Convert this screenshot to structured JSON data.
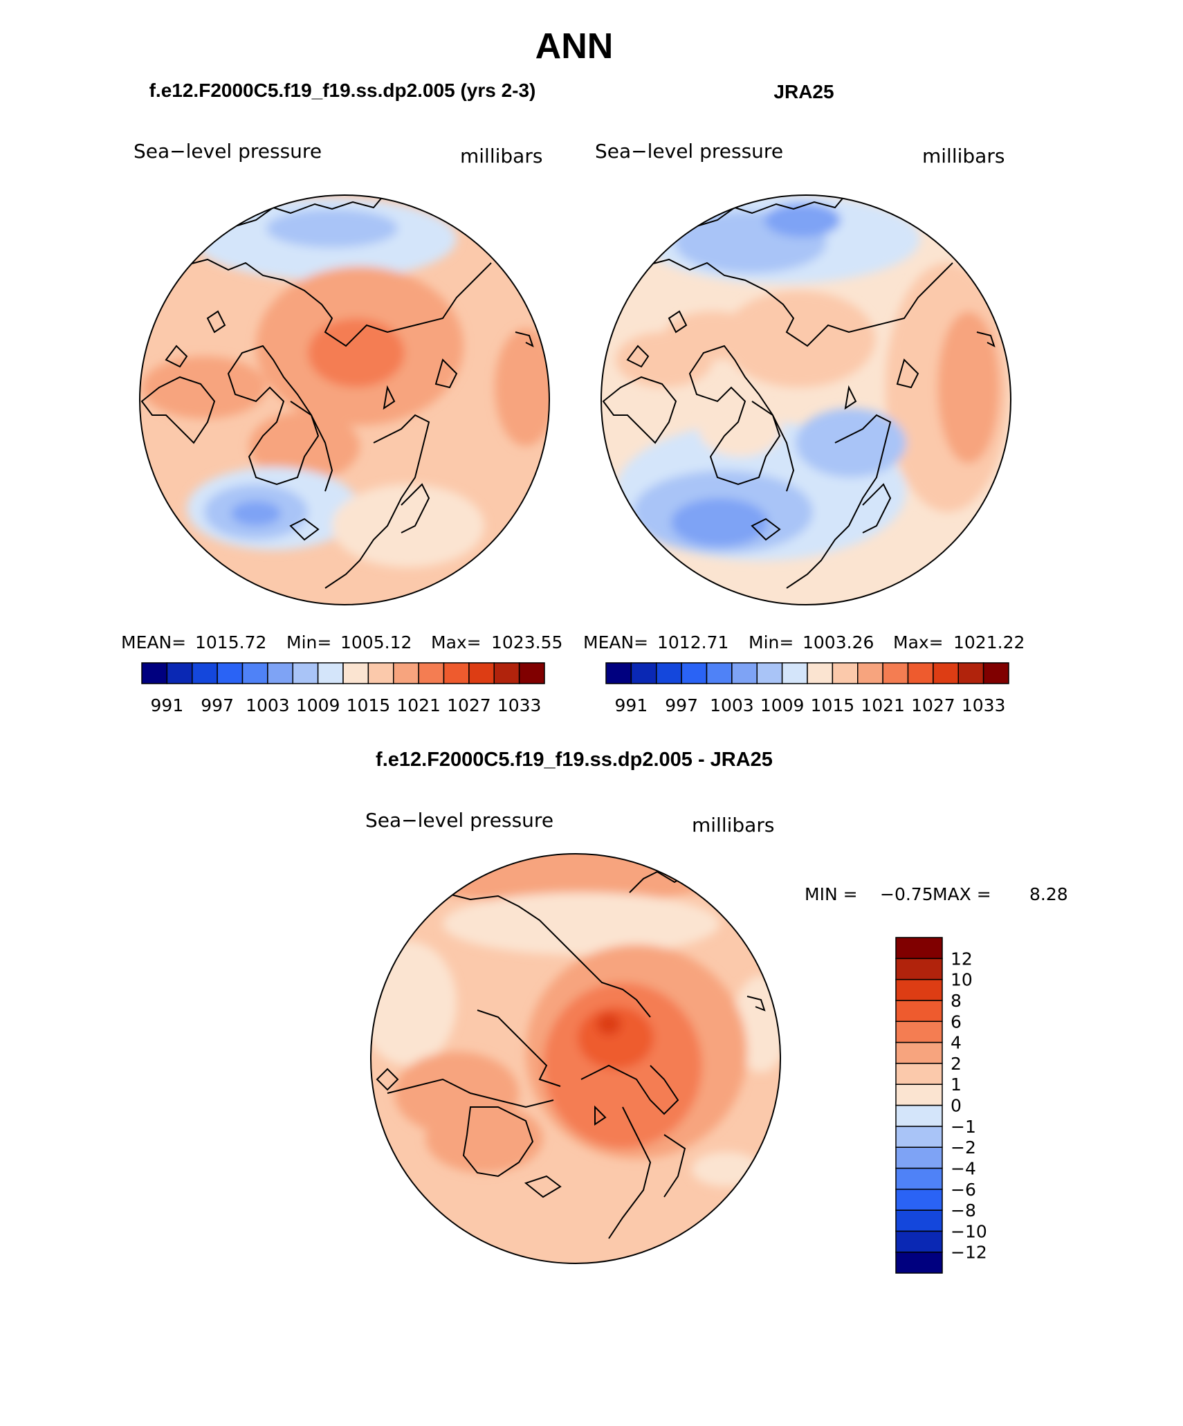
{
  "page": {
    "title": "ANN",
    "diff_title": "f.e12.F2000C5.f19_f19.ss.dp2.005 - JRA25"
  },
  "panels": [
    {
      "case_title": "f.e12.F2000C5.f19_f19.ss.dp2.005 (yrs 2-3)",
      "variable": "Sea−level pressure",
      "units": "millibars",
      "stats": {
        "mean_label": "MEAN=",
        "mean": "1015.72",
        "min_label": "Min=",
        "min": "1005.12",
        "max_label": "Max=",
        "max": "1023.55"
      }
    },
    {
      "case_title": "JRA25",
      "variable": "Sea−level pressure",
      "units": "millibars",
      "stats": {
        "mean_label": "MEAN=",
        "mean": "1012.71",
        "min_label": "Min=",
        "min": "1003.26",
        "max_label": "Max=",
        "max": "1021.22"
      }
    }
  ],
  "diff_panel": {
    "variable": "Sea−level pressure",
    "units": "millibars",
    "stats": {
      "min_label": "MIN =",
      "min": "−0.75",
      "max_label": "MAX =",
      "max": "8.28"
    }
  },
  "colorbars": {
    "abs": {
      "colors": [
        "#00007f",
        "#0a28b4",
        "#1447dc",
        "#2a63f5",
        "#4f82f7",
        "#7ea3f5",
        "#a9c4f7",
        "#d4e5fa",
        "#fbe4d1",
        "#fbc9ab",
        "#f7a47e",
        "#f47d52",
        "#ee5b2e",
        "#dd3d14",
        "#b1230c",
        "#800000"
      ],
      "tick_labels": [
        "991",
        "997",
        "1003",
        "1009",
        "1015",
        "1021",
        "1027",
        "1033"
      ]
    },
    "diff": {
      "colors": [
        "#00007f",
        "#0a28b4",
        "#1447dc",
        "#2a63f5",
        "#4f82f7",
        "#7ea3f5",
        "#a9c4f7",
        "#d4e5fa",
        "#fbe4d1",
        "#fbc9ab",
        "#f7a47e",
        "#f47d52",
        "#ee5b2e",
        "#dd3d14",
        "#b1230c",
        "#800000"
      ],
      "tick_labels": [
        "−12",
        "−10",
        "−8",
        "−6",
        "−4",
        "−2",
        "−1",
        "0",
        "1",
        "2",
        "4",
        "6",
        "8",
        "10",
        "12"
      ]
    }
  }
}
